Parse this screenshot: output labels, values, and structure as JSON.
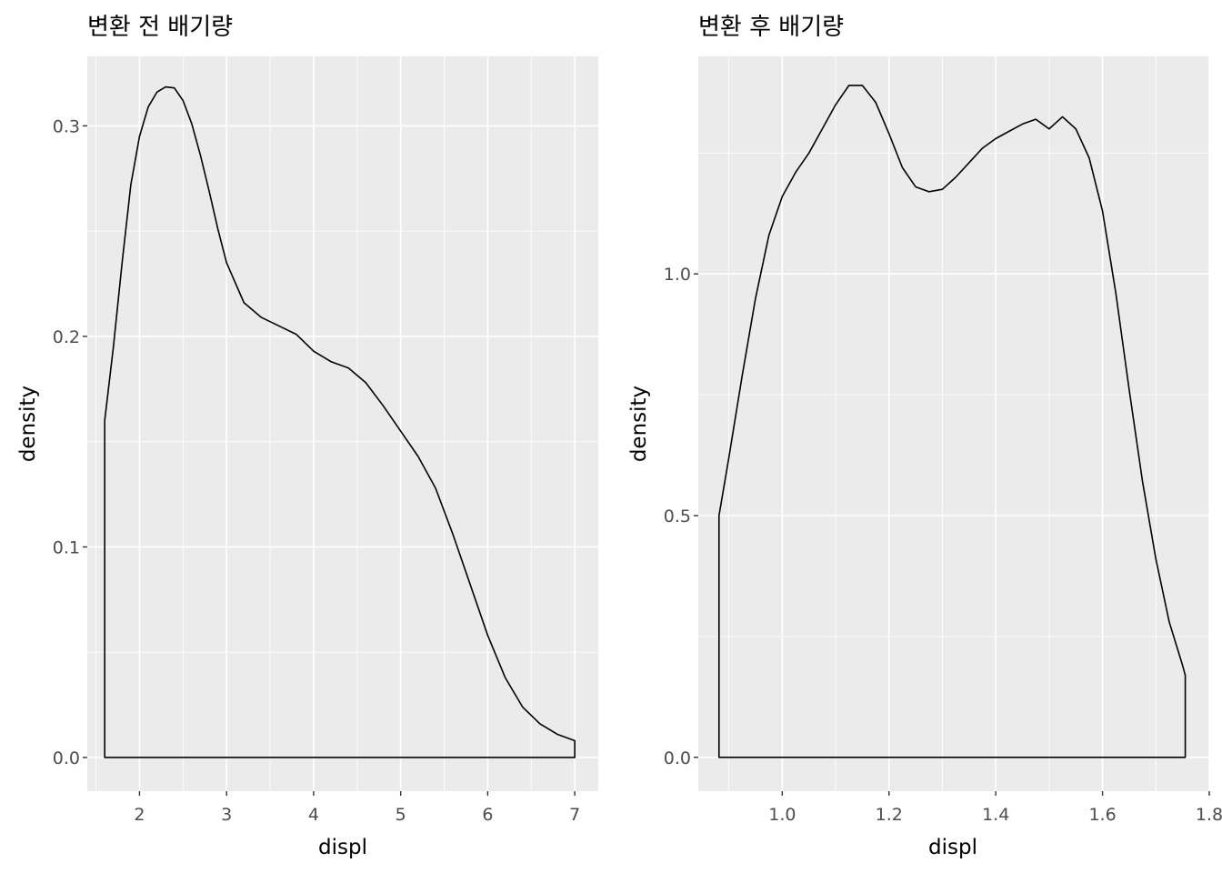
{
  "chart_data": [
    {
      "type": "area",
      "title": "변환 전 배기량",
      "xlabel": "displ",
      "ylabel": "density",
      "xlim": [
        1.4,
        7.27
      ],
      "ylim": [
        -0.016,
        0.333
      ],
      "x_ticks": [
        2,
        3,
        4,
        5,
        6,
        7
      ],
      "x_tick_labels": [
        "2",
        "3",
        "4",
        "5",
        "6",
        "7"
      ],
      "y_ticks": [
        0.0,
        0.1,
        0.2,
        0.3
      ],
      "y_tick_labels": [
        "0.0",
        "0.1",
        "0.2",
        "0.3"
      ],
      "grid": true,
      "fill": "none",
      "line_color": "#000000",
      "panel_background": "#ebebeb",
      "series": [
        {
          "x": [
            1.6,
            1.7,
            1.8,
            1.9,
            2.0,
            2.1,
            2.2,
            2.3,
            2.4,
            2.5,
            2.6,
            2.7,
            2.8,
            2.9,
            3.0,
            3.2,
            3.4,
            3.6,
            3.8,
            4.0,
            4.2,
            4.4,
            4.6,
            4.8,
            5.0,
            5.2,
            5.4,
            5.6,
            5.8,
            6.0,
            6.2,
            6.4,
            6.6,
            6.8,
            7.0
          ],
          "y": [
            0.16,
            0.195,
            0.235,
            0.272,
            0.295,
            0.309,
            0.316,
            0.3185,
            0.318,
            0.312,
            0.301,
            0.286,
            0.269,
            0.251,
            0.235,
            0.216,
            0.209,
            0.205,
            0.201,
            0.193,
            0.188,
            0.185,
            0.178,
            0.167,
            0.155,
            0.143,
            0.128,
            0.106,
            0.082,
            0.058,
            0.038,
            0.024,
            0.016,
            0.011,
            0.008
          ]
        }
      ]
    },
    {
      "type": "area",
      "title": "변환 후 배기량",
      "xlabel": "displ",
      "ylabel": "density",
      "xlim": [
        0.8427,
        1.8
      ],
      "ylim": [
        -0.07,
        1.45
      ],
      "x_ticks": [
        1.0,
        1.2,
        1.4,
        1.6,
        1.8
      ],
      "x_tick_labels": [
        "1.0",
        "1.2",
        "1.4",
        "1.6",
        "1.8"
      ],
      "y_ticks": [
        0.0,
        0.5,
        1.0
      ],
      "y_tick_labels": [
        "0.0",
        "0.5",
        "1.0"
      ],
      "grid": true,
      "fill": "none",
      "line_color": "#000000",
      "panel_background": "#ebebeb",
      "series": [
        {
          "x": [
            0.8815,
            0.9,
            0.925,
            0.95,
            0.975,
            1.0,
            1.025,
            1.05,
            1.075,
            1.1,
            1.125,
            1.15,
            1.175,
            1.2,
            1.225,
            1.25,
            1.275,
            1.3,
            1.325,
            1.35,
            1.375,
            1.4,
            1.425,
            1.45,
            1.475,
            1.5,
            1.525,
            1.55,
            1.575,
            1.6,
            1.625,
            1.65,
            1.675,
            1.7,
            1.725,
            1.75,
            1.755
          ],
          "y": [
            0.5,
            0.62,
            0.79,
            0.95,
            1.08,
            1.16,
            1.21,
            1.25,
            1.3,
            1.35,
            1.39,
            1.39,
            1.355,
            1.29,
            1.22,
            1.18,
            1.17,
            1.175,
            1.2,
            1.23,
            1.26,
            1.28,
            1.295,
            1.31,
            1.32,
            1.3,
            1.325,
            1.3,
            1.24,
            1.13,
            0.96,
            0.76,
            0.57,
            0.41,
            0.28,
            0.19,
            0.17
          ]
        }
      ]
    }
  ]
}
